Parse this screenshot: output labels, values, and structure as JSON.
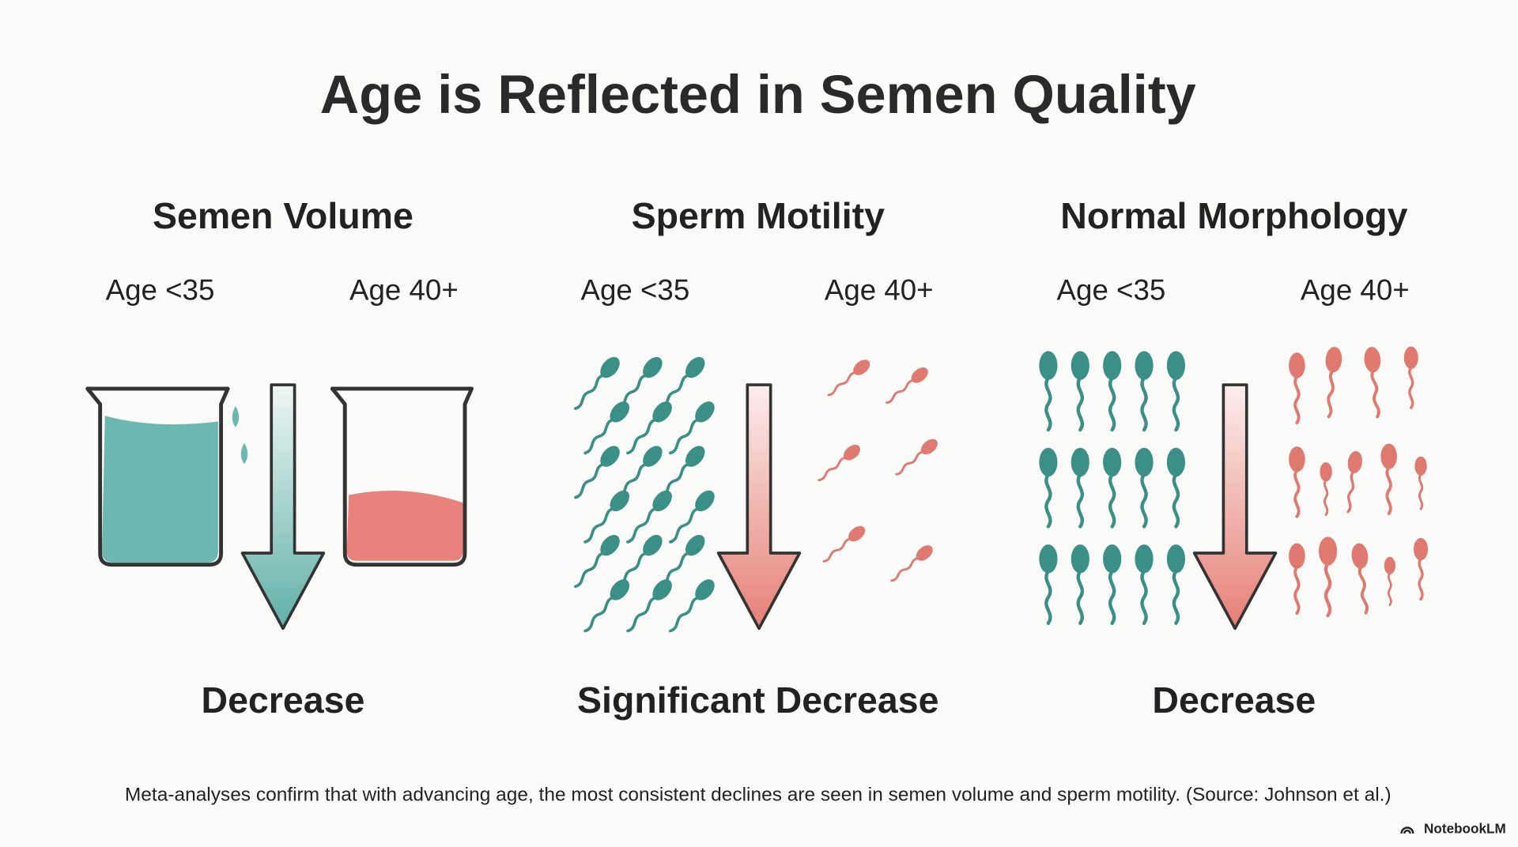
{
  "title": "Age is Reflected in Semen Quality",
  "panels": [
    {
      "heading": "Semen Volume",
      "left_label": "Age <35",
      "right_label": "Age 40+",
      "result": "Decrease"
    },
    {
      "heading": "Sperm Motility",
      "left_label": "Age <35",
      "right_label": "Age 40+",
      "result": "Significant Decrease"
    },
    {
      "heading": "Normal Morphology",
      "left_label": "Age <35",
      "right_label": "Age 40+",
      "result": "Decrease"
    }
  ],
  "footer": "Meta-analyses confirm that with advancing age, the most consistent declines are seen in semen volume and sperm motility. (Source: Johnson et al.)",
  "brand": "NotebookLM"
}
